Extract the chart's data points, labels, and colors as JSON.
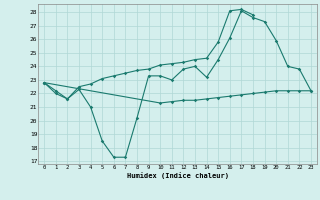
{
  "xlabel": "Humidex (Indice chaleur)",
  "x_values": [
    0,
    1,
    2,
    3,
    4,
    5,
    6,
    7,
    8,
    9,
    10,
    11,
    12,
    13,
    14,
    15,
    16,
    17,
    18,
    19,
    20,
    21,
    22,
    23
  ],
  "line1": [
    22.8,
    22.0,
    21.6,
    22.3,
    21.0,
    18.5,
    17.3,
    17.3,
    20.2,
    23.3,
    23.3,
    23.0,
    23.8,
    24.0,
    23.2,
    24.5,
    26.1,
    28.1,
    27.6,
    27.3,
    25.9,
    24.0,
    23.8,
    22.2
  ],
  "line2": [
    22.8,
    22.2,
    21.6,
    22.5,
    22.7,
    23.1,
    23.3,
    23.5,
    23.7,
    23.8,
    24.1,
    24.2,
    24.3,
    24.5,
    24.6,
    25.8,
    28.1,
    28.2,
    27.8,
    null,
    null,
    null,
    null,
    null
  ],
  "line3": [
    22.8,
    null,
    null,
    null,
    null,
    null,
    null,
    null,
    null,
    null,
    21.3,
    21.4,
    21.5,
    21.5,
    21.6,
    21.7,
    21.8,
    21.9,
    22.0,
    22.1,
    22.2,
    22.2,
    22.2,
    22.2
  ],
  "line_color": "#1a7a6e",
  "bg_color": "#d4efed",
  "grid_color": "#b0d8d5",
  "ylim": [
    16.8,
    28.6
  ],
  "yticks": [
    17,
    18,
    19,
    20,
    21,
    22,
    23,
    24,
    25,
    26,
    27,
    28
  ],
  "xlim": [
    -0.5,
    23.5
  ]
}
